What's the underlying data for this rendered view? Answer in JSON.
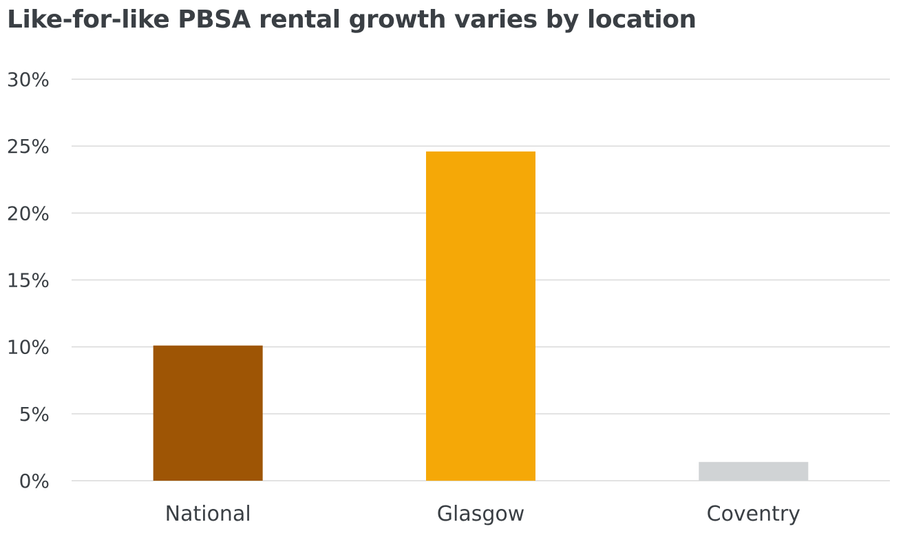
{
  "chart_data": {
    "type": "bar",
    "title": "Like-for-like PBSA rental growth varies by location",
    "xlabel": "",
    "ylabel": "",
    "categories": [
      "National",
      "Glasgow",
      "Coventry"
    ],
    "values": [
      10.1,
      24.6,
      1.4
    ],
    "colors": [
      "#9e5505",
      "#f5a807",
      "#d0d3d5"
    ],
    "ylim": [
      0,
      30
    ],
    "yticks": [
      0,
      5,
      10,
      15,
      20,
      25,
      30
    ],
    "ytick_suffix": "%",
    "grid": true,
    "legend": "none"
  }
}
